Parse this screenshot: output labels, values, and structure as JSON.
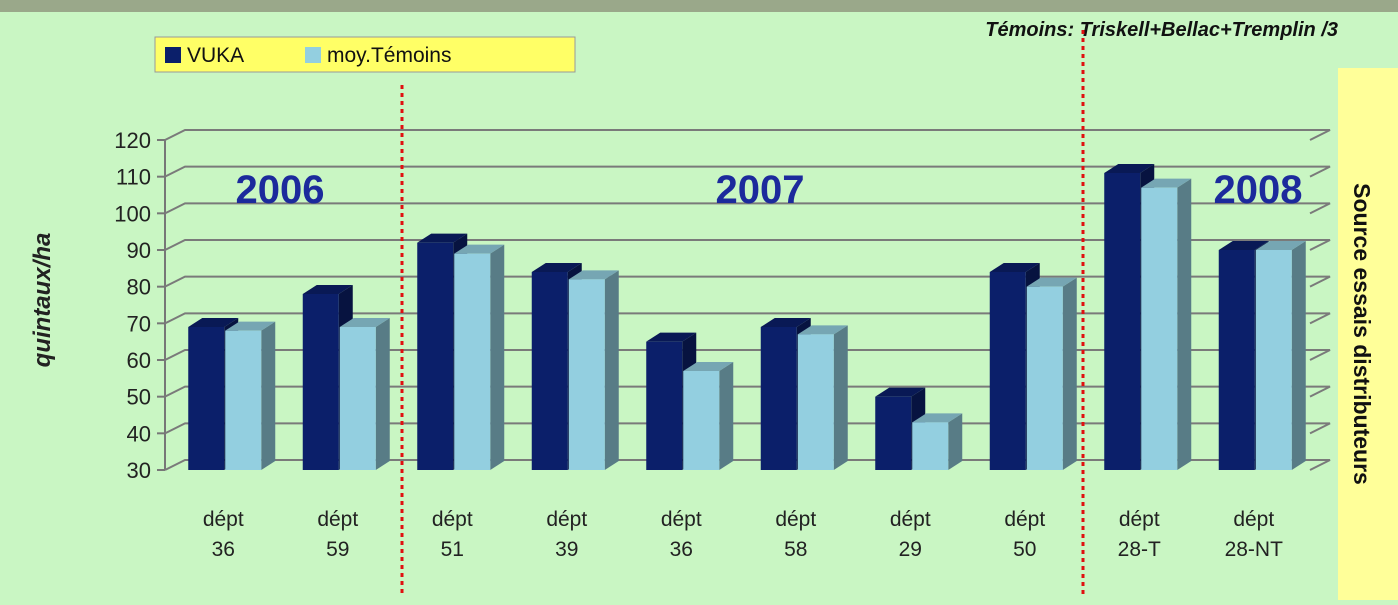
{
  "chart_data": {
    "type": "bar",
    "categories": [
      "dépt 36",
      "dépt 59",
      "dépt 51",
      "dépt 39",
      "dépt 36",
      "dépt 58",
      "dépt 29",
      "dépt 50",
      "dépt 28-T",
      "dépt 28-NT"
    ],
    "series": [
      {
        "name": "VUKA",
        "color": "#0b1f6a",
        "values": [
          69,
          78,
          92,
          84,
          65,
          69,
          50,
          84,
          111,
          90
        ]
      },
      {
        "name": "moy.Témoins",
        "color": "#93cfe0",
        "values": [
          68,
          69,
          89,
          82,
          57,
          67,
          43,
          80,
          107,
          90
        ]
      }
    ],
    "y_label": "quintaux/ha",
    "ylim": [
      30,
      120
    ],
    "yticks": [
      30,
      40,
      50,
      60,
      70,
      80,
      90,
      100,
      110,
      120
    ],
    "grid": true,
    "legend": "top-left",
    "annotations": [
      "2006",
      "2007",
      "2008"
    ],
    "note": "Témoins: Triskell+Bellac+Tremplin /3",
    "source": "Source essais distributeurs"
  }
}
